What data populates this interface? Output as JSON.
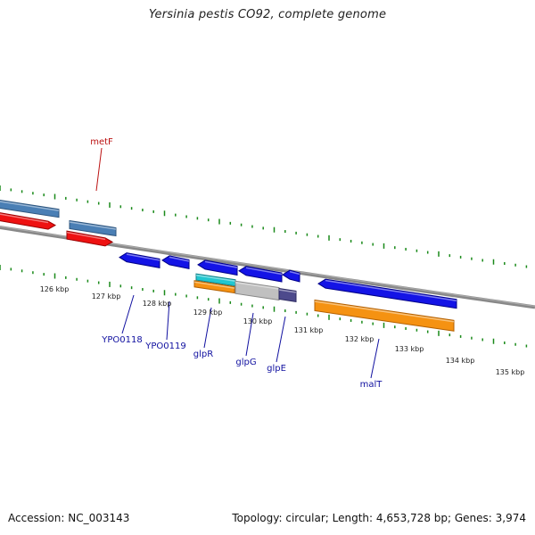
{
  "title": "Yersinia pestis CO92, complete genome",
  "footer": {
    "accession": "Accession: NC_003143",
    "summary": "Topology: circular; Length: 4,653,728 bp; Genes: 3,974"
  },
  "colors": {
    "backbone": "#808080",
    "tick": "#1a8a1a",
    "gene_blue": "#1414e6",
    "gene_red": "#ee1111",
    "gene_steel": "#4a7fb5",
    "gene_orange": "#f59212",
    "gene_cyan": "#22c7d0",
    "gene_gray": "#c0c0c0",
    "gene_purple": "#4d4a8c",
    "label_blue": "#1010a0",
    "label_red": "#bb1111"
  },
  "kbp_labels": [
    "126 kbp",
    "127 kbp",
    "128 kbp",
    "129 kbp",
    "130 kbp",
    "131 kbp",
    "132 kbp",
    "133 kbp",
    "134 kbp",
    "135 kbp"
  ],
  "gene_labels": [
    {
      "text": "metF",
      "color": "red"
    },
    {
      "text": "YPO0118",
      "color": "blue"
    },
    {
      "text": "YPO0119",
      "color": "blue"
    },
    {
      "text": "glpR",
      "color": "blue"
    },
    {
      "text": "glpG",
      "color": "blue"
    },
    {
      "text": "glpE",
      "color": "blue"
    },
    {
      "text": "malT",
      "color": "blue"
    }
  ]
}
